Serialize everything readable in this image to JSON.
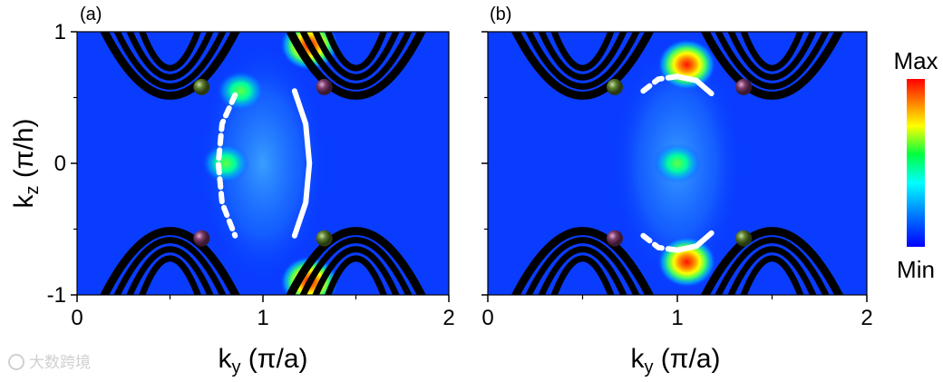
{
  "chart_data": [
    {
      "type": "heatmap",
      "panel_label": "(a)",
      "x_range": [
        0,
        2
      ],
      "y_range": [
        -1,
        1
      ],
      "x_ticks": [
        "0",
        "1",
        "2"
      ],
      "y_ticks": [
        "-1",
        "0",
        "1"
      ],
      "xlabel_base": "k",
      "xlabel_sub": "y",
      "xlabel_unit": " (π/a)",
      "ylabel_base": "k",
      "ylabel_sub": "z",
      "ylabel_unit": " (π/h)",
      "hot_spots": [
        {
          "x": 0.88,
          "y": 0.55,
          "intensity": 0.55
        },
        {
          "x": 1.25,
          "y": 0.9,
          "intensity": 1.0
        },
        {
          "x": 1.25,
          "y": -0.9,
          "intensity": 1.0
        },
        {
          "x": 0.8,
          "y": 0.0,
          "intensity": 0.45
        }
      ],
      "spheres": [
        {
          "x": 0.67,
          "y": 0.58,
          "color": "#4a6a2a"
        },
        {
          "x": 1.33,
          "y": 0.58,
          "color": "#6a3a5a"
        },
        {
          "x": 0.67,
          "y": -0.57,
          "color": "#6a3a5a"
        },
        {
          "x": 1.33,
          "y": -0.57,
          "color": "#4a6a2a"
        }
      ],
      "arcs": [
        {
          "style": "dashed",
          "points": [
            [
              0.85,
              0.52
            ],
            [
              0.78,
              0.3
            ],
            [
              0.76,
              0.0
            ],
            [
              0.78,
              -0.3
            ],
            [
              0.85,
              -0.55
            ]
          ]
        },
        {
          "style": "solid",
          "points": [
            [
              1.17,
              0.55
            ],
            [
              1.23,
              0.3
            ],
            [
              1.25,
              0.0
            ],
            [
              1.23,
              -0.3
            ],
            [
              1.17,
              -0.55
            ]
          ]
        }
      ]
    },
    {
      "type": "heatmap",
      "panel_label": "(b)",
      "x_range": [
        0,
        2
      ],
      "y_range": [
        -1,
        1
      ],
      "x_ticks": [
        "0",
        "1",
        "2"
      ],
      "y_ticks": [],
      "xlabel_base": "k",
      "xlabel_sub": "y",
      "xlabel_unit": " (π/a)",
      "hot_spots": [
        {
          "x": 1.05,
          "y": 0.75,
          "intensity": 1.0
        },
        {
          "x": 1.05,
          "y": -0.75,
          "intensity": 1.0
        },
        {
          "x": 1.0,
          "y": 0.0,
          "intensity": 0.35
        }
      ],
      "spheres": [
        {
          "x": 0.67,
          "y": 0.58,
          "color": "#4a6a2a"
        },
        {
          "x": 1.35,
          "y": 0.58,
          "color": "#6a3a5a"
        },
        {
          "x": 0.67,
          "y": -0.57,
          "color": "#6a3a5a"
        },
        {
          "x": 1.35,
          "y": -0.57,
          "color": "#4a6a2a"
        }
      ],
      "arcs": [
        {
          "style": "dashed",
          "points": [
            [
              0.82,
              0.55
            ],
            [
              0.9,
              0.64
            ],
            [
              1.0,
              0.66
            ]
          ]
        },
        {
          "style": "solid",
          "points": [
            [
              1.0,
              0.66
            ],
            [
              1.1,
              0.63
            ],
            [
              1.18,
              0.53
            ]
          ]
        },
        {
          "style": "dashed",
          "points": [
            [
              0.82,
              -0.55
            ],
            [
              0.9,
              -0.64
            ],
            [
              1.0,
              -0.66
            ]
          ]
        },
        {
          "style": "solid",
          "points": [
            [
              1.0,
              -0.66
            ],
            [
              1.1,
              -0.63
            ],
            [
              1.18,
              -0.53
            ]
          ]
        }
      ]
    }
  ],
  "colorbar": {
    "max_label": "Max",
    "min_label": "Min",
    "colors": [
      "#0000ff",
      "#0080ff",
      "#00ffff",
      "#00ff40",
      "#ffff00",
      "#ff8000",
      "#ff0000"
    ]
  },
  "watermark": "大数跨境"
}
